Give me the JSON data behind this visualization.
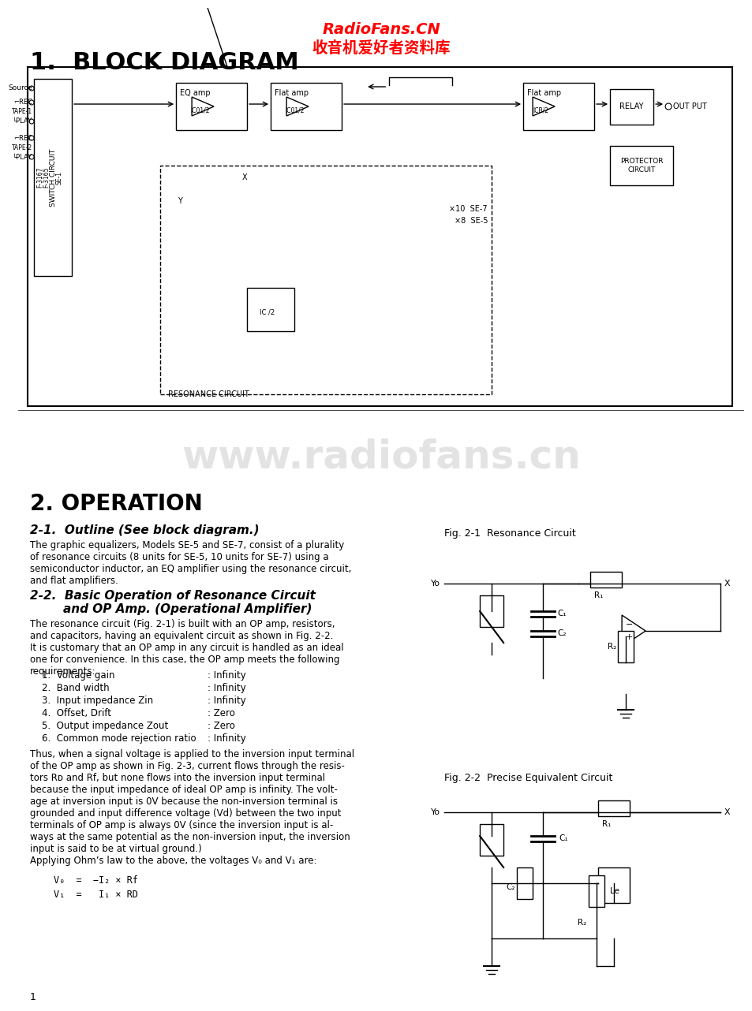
{
  "background_color": "#ffffff",
  "title1": "1.  BLOCK DIAGRAM",
  "watermark_top_en": "RadioFans.CN",
  "watermark_top_cn": "收音机爱好者资料库",
  "watermark_center": "www.radiofans.cn",
  "title2": "2. OPERATION",
  "section21_title": "2-1.  Outline (See block diagram.)",
  "section21_body": "The graphic equalizers, Models SE-5 and SE-7, consist of a plurality\nof resonance circuits (8 units for SE-5, 10 units for SE-7) using a\nsemiconductor inductor, an EQ amplifier using the resonance circuit,\nand flat amplifiers.",
  "section22_title": "2-2.  Basic Operation of Resonance Circuit\n        and OP Amp. (Operational Amplifier)",
  "section22_body": "The resonance circuit (Fig. 2-1) is built with an OP amp, resistors,\nand capacitors, having an equivalent circuit as shown in Fig. 2-2.\nIt is customary that an OP amp in any circuit is handled as an ideal\none for convenience. In this case, the OP amp meets the following\nrequirements:",
  "requirements": [
    [
      "1.  Voltage gain",
      ": Infinity"
    ],
    [
      "2.  Band width",
      ": Infinity"
    ],
    [
      "3.  Input impedance Zin",
      ": Infinity"
    ],
    [
      "4.  Offset, Drift",
      ": Zero"
    ],
    [
      "5.  Output impedance Zout",
      ": Zero"
    ],
    [
      "6.  Common mode rejection ratio",
      ": Infinity"
    ]
  ],
  "section22_body2": "Thus, when a signal voltage is applied to the inversion input terminal\nof the OP amp as shown in Fig. 2-3, current flows through the resis-\ntors R",
  "section22_body2b": "D",
  "section22_body2c": " and Rf, but none flows into the inversion input terminal\nbecause the input impedance of ideal OP amp is infinity. The volt-\nage at inversion input is 0V because the non-inversion terminal is\ngrounded and input difference voltage (Vd) between the two input\nterminals of OP amp is always 0V (since the inversion input is al-\nways at the same potential as the non-inversion input, the inversion\ninput is said to be at virtual ground.)\nApplying Ohm’s law to the above, the voltages V",
  "formula1": "V₀  =  −I₂ × Rf",
  "formula2": "V₁  =   I₁ × R",
  "formula2b": "D",
  "fig21_title": "Fig. 2-1  Resonance Circuit",
  "fig22_title": "Fig. 2-2  Precise Equivalent Circuit",
  "page_num": "1",
  "block_diagram_labels": {
    "source": "Source",
    "switch_circuit": "SWITCH CIRCUIT",
    "f3165": "F-3165",
    "f3167": "F-3167",
    "se1": "SE-1",
    "tape1_rec": "┌REC",
    "tape1_play": "└PLAY",
    "tape2_rec": "┌REC",
    "tape2_play": "└PLAY",
    "tape1": "TAPE-1",
    "tape2": "TAPE-2",
    "eq_amp": "EQ amp",
    "ic01_2_eq": "IC01/2",
    "flat_amp1": "Flat amp",
    "ic01_2_flat": "IC01/2",
    "flat_amp2": "Flat amp",
    "ic8_2": "ICB/2",
    "relay": "RELAY",
    "output": "OUT PUT",
    "protector": "PROTECTOR\nCIRCUIT",
    "resonance_label": "RESONANCE CIRCUIT",
    "x10": "×10  SE-7",
    "x8": "×8  SE-5",
    "ic_2": "IC /2",
    "x_label": "X",
    "y_label": "Y"
  }
}
